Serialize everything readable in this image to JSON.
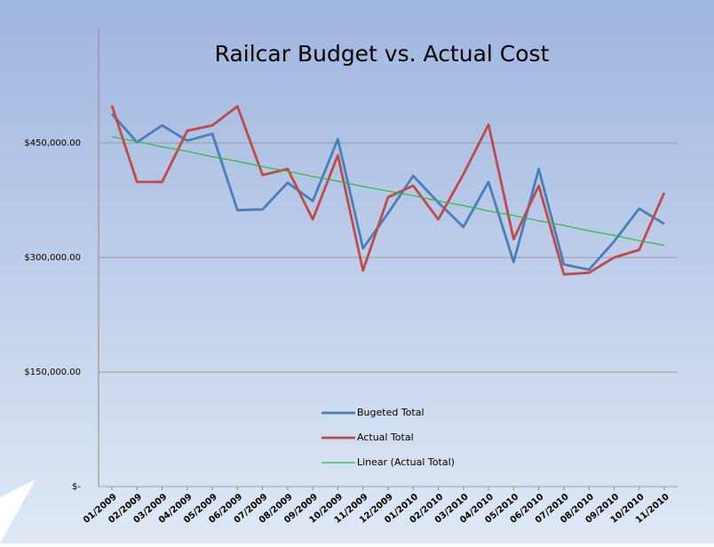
{
  "chart_data": {
    "type": "line",
    "title": "Railcar Budget vs. Actual Cost",
    "categories": [
      "01/2009",
      "02/2009",
      "03/2009",
      "04/2009",
      "05/2009",
      "06/2009",
      "07/2009",
      "08/2009",
      "09/2009",
      "10/2009",
      "11/2009",
      "12/2009",
      "01/2010",
      "02/2010",
      "03/2010",
      "04/2010",
      "05/2010",
      "06/2010",
      "07/2010",
      "08/2010",
      "09/2010",
      "10/2010",
      "11/2010"
    ],
    "series": [
      {
        "name": "Bugeted Total",
        "color": "#4a7ebb",
        "values": [
          488000,
          451000,
          473000,
          453000,
          462000,
          362000,
          363000,
          398000,
          374000,
          455000,
          312000,
          358000,
          407000,
          372000,
          340000,
          399000,
          294000,
          416000,
          291000,
          284000,
          321000,
          364000,
          344000
        ]
      },
      {
        "name": "Actual Total",
        "color": "#be4b48",
        "values": [
          499000,
          399000,
          399000,
          466000,
          473000,
          498000,
          408000,
          416000,
          350000,
          434000,
          283000,
          379000,
          394000,
          350000,
          409000,
          474000,
          324000,
          394000,
          278000,
          280000,
          300000,
          310000,
          385000
        ]
      },
      {
        "name": "Linear (Actual Total)",
        "color": "#2db83d",
        "values": [
          458000,
          452000,
          445000,
          439000,
          432000,
          426000,
          419000,
          413000,
          406000,
          400000,
          393000,
          387000,
          381000,
          374000,
          368000,
          361000,
          355000,
          348000,
          342000,
          335000,
          329000,
          322000,
          316000
        ]
      }
    ],
    "ylim": [
      0,
      600000
    ],
    "yticks": [
      {
        "value": 0,
        "label": "$-"
      },
      {
        "value": 150000,
        "label": "$150,000.00"
      },
      {
        "value": 300000,
        "label": "$300,000.00"
      },
      {
        "value": 450000,
        "label": "$450,000.00"
      }
    ],
    "grid": true
  }
}
